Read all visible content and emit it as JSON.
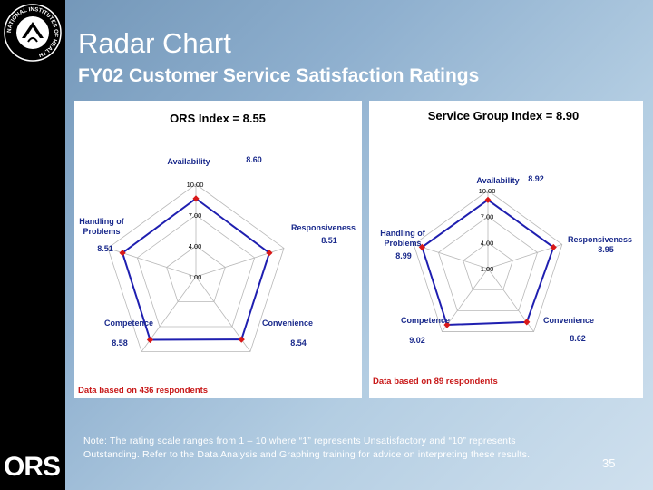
{
  "slide": {
    "title": "Radar Chart",
    "subtitle": "FY02 Customer Service Satisfaction Ratings",
    "page_number": "35",
    "logo_text": "ORS",
    "seal_text": "NATIONAL INSTITUTES OF HEALTH"
  },
  "note": {
    "line1": "Note:  The rating scale ranges  from 1 – 10 where “1” represents Unsatisfactory and “10” represents",
    "line2": "Outstanding.   Refer to the Data Analysis and Graphing training for advice on interpreting these results."
  },
  "colors": {
    "background": "#8fb0cf",
    "series_line": "#1f1fb0",
    "marker": "#d81818",
    "label_blue": "#1a2a8c",
    "footnote_red": "#c81818"
  },
  "chart_data": [
    {
      "type": "radar",
      "title": "ORS Index = 8.55",
      "axes": [
        "Availability",
        "Responsiveness",
        "Convenience",
        "Competence",
        "Handling of Problems"
      ],
      "axis_labels": [
        "Availability",
        "Responsiveness",
        "Convenience",
        "Competence",
        "Handling of\nProblems"
      ],
      "values": [
        8.6,
        8.51,
        8.54,
        8.58,
        8.51
      ],
      "value_labels": [
        "8.60",
        "8.51",
        "8.54",
        "8.58",
        "8.51"
      ],
      "scale_ticks": [
        "1.00",
        "4.00",
        "7.00",
        "10.00"
      ],
      "scale_values": [
        1,
        4,
        7,
        10
      ],
      "range": [
        1,
        10
      ],
      "footnote": "Data based on 436 respondents"
    },
    {
      "type": "radar",
      "title": "Service Group Index = 8.90",
      "axes": [
        "Availability",
        "Responsiveness",
        "Convenience",
        "Competence",
        "Handling of Problems"
      ],
      "axis_labels": [
        "Availability",
        "Responsiveness",
        "Convenience",
        "Competence",
        "Handling of\nProblems"
      ],
      "values": [
        8.92,
        8.95,
        8.62,
        9.02,
        8.99
      ],
      "value_labels": [
        "8.92",
        "8.95",
        "8.62",
        "9.02",
        "8.99"
      ],
      "scale_ticks": [
        "1.00",
        "4.00",
        "7.00",
        "10.00"
      ],
      "scale_values": [
        1,
        4,
        7,
        10
      ],
      "range": [
        1,
        10
      ],
      "footnote": "Data based on 89 respondents"
    }
  ]
}
